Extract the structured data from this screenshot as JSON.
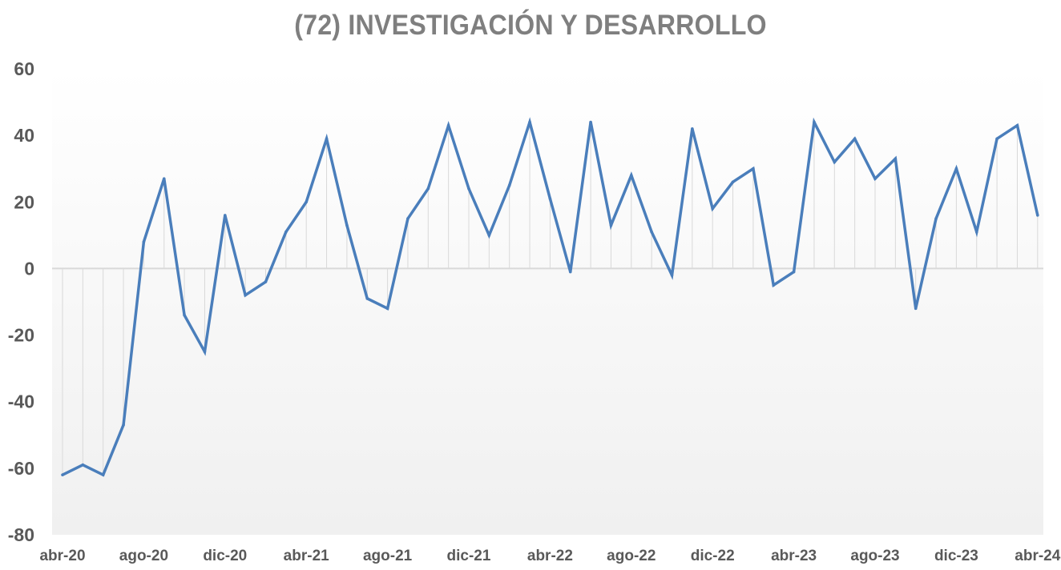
{
  "title": "(72) INVESTIGACIÓN Y DESARROLLO",
  "colors": {
    "line": "#4a7ebb",
    "title": "#7f7f7f",
    "tick": "#595959",
    "zero_line": "#d9d9d9",
    "drop_line": "#d9d9d9",
    "plot_bg_top": "#ffffff",
    "plot_bg_bottom": "#f0f0f0"
  },
  "chart_data": {
    "type": "line",
    "title": "(72) INVESTIGACIÓN Y DESARROLLO",
    "xlabel": "",
    "ylabel": "",
    "ylim": [
      -80,
      60
    ],
    "yticks": [
      60,
      40,
      20,
      0,
      -20,
      -40,
      -60,
      -80
    ],
    "grid": false,
    "legend": "none",
    "drop_lines": true,
    "x": [
      "abr-20",
      "may-20",
      "jun-20",
      "jul-20",
      "ago-20",
      "sep-20",
      "oct-20",
      "nov-20",
      "dic-20",
      "ene-21",
      "feb-21",
      "mar-21",
      "abr-21",
      "may-21",
      "jun-21",
      "jul-21",
      "ago-21",
      "sep-21",
      "oct-21",
      "nov-21",
      "dic-21",
      "ene-22",
      "feb-22",
      "mar-22",
      "abr-22",
      "may-22",
      "jun-22",
      "jul-22",
      "ago-22",
      "sep-22",
      "oct-22",
      "nov-22",
      "dic-22",
      "ene-23",
      "feb-23",
      "mar-23",
      "abr-23",
      "may-23",
      "jun-23",
      "jul-23",
      "ago-23",
      "sep-23",
      "oct-23",
      "nov-23",
      "dic-23",
      "ene-24",
      "feb-24",
      "mar-24",
      "abr-24"
    ],
    "xtick_labels": [
      "abr-20",
      "ago-20",
      "dic-20",
      "abr-21",
      "ago-21",
      "dic-21",
      "abr-22",
      "ago-22",
      "dic-22",
      "abr-23",
      "ago-23",
      "dic-23",
      "abr-24"
    ],
    "series": [
      {
        "values": [
          -62,
          -59,
          -62,
          -47,
          8,
          27,
          -14,
          -25,
          16,
          -8,
          -4,
          11,
          20,
          39,
          13,
          -9,
          -12,
          15,
          24,
          43,
          24,
          10,
          25,
          44,
          21,
          -1,
          44,
          13,
          28,
          11,
          -2,
          42,
          18,
          26,
          30,
          -5,
          -1,
          44,
          32,
          39,
          27,
          33,
          -12,
          15,
          30,
          11,
          39,
          43,
          16
        ]
      }
    ]
  }
}
